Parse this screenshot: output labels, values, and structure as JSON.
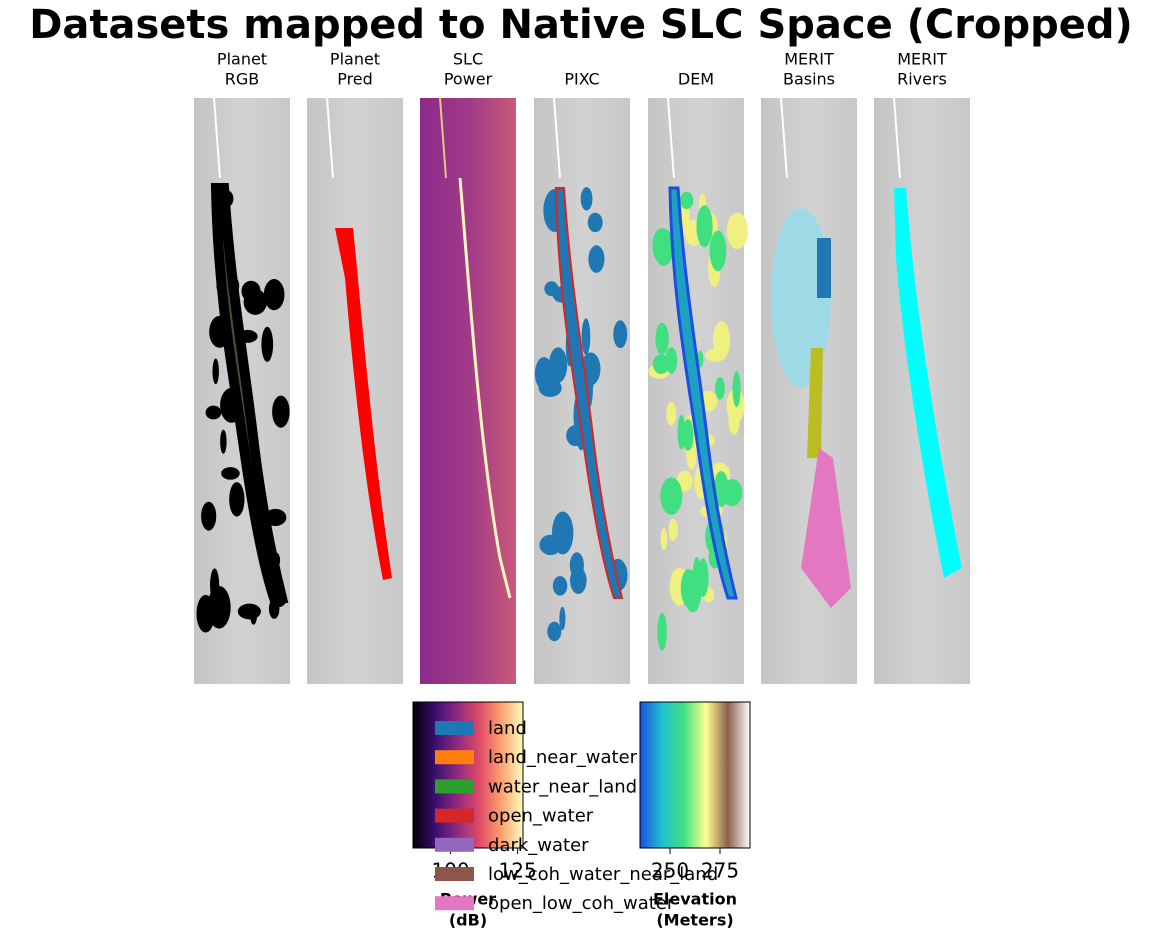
{
  "title": "Datasets mapped to Native SLC Space (Cropped)",
  "panels": [
    {
      "title": [
        "Planet",
        "RGB"
      ]
    },
    {
      "title": [
        "Planet",
        "Pred"
      ]
    },
    {
      "title": [
        "SLC",
        "Power"
      ]
    },
    {
      "title": [
        "PIXC"
      ]
    },
    {
      "title": [
        "DEM"
      ]
    },
    {
      "title": [
        "MERIT",
        "Basins"
      ]
    },
    {
      "title": [
        "MERIT",
        "Rivers"
      ]
    }
  ],
  "colorbars": [
    {
      "label": [
        "Power",
        "(dB)"
      ],
      "lim": [
        86,
        127
      ],
      "ticks": [
        100,
        125
      ],
      "colors": [
        "#000004",
        "#3b0f70",
        "#8c2981",
        "#de4968",
        "#fe9f6d",
        "#fcfdbf"
      ]
    },
    {
      "label": [
        "Elevation",
        "(Meters)"
      ],
      "lim": [
        235,
        290
      ],
      "ticks": [
        250,
        275
      ],
      "colors": [
        "#1a50e0",
        "#20c0d0",
        "#40e080",
        "#ffff90",
        "#8b6050",
        "#ffffff"
      ]
    }
  ],
  "legend": [
    {
      "name": "land",
      "color": "#1f77b4"
    },
    {
      "name": "land_near_water",
      "color": "#ff7f0e"
    },
    {
      "name": "water_near_land",
      "color": "#2ca02c"
    },
    {
      "name": "open_water",
      "color": "#d62728"
    },
    {
      "name": "dark_water",
      "color": "#9467bd"
    },
    {
      "name": "low_coh_water_near_land",
      "color": "#8c564b"
    },
    {
      "name": "open_low_coh_water",
      "color": "#e377c2"
    }
  ]
}
